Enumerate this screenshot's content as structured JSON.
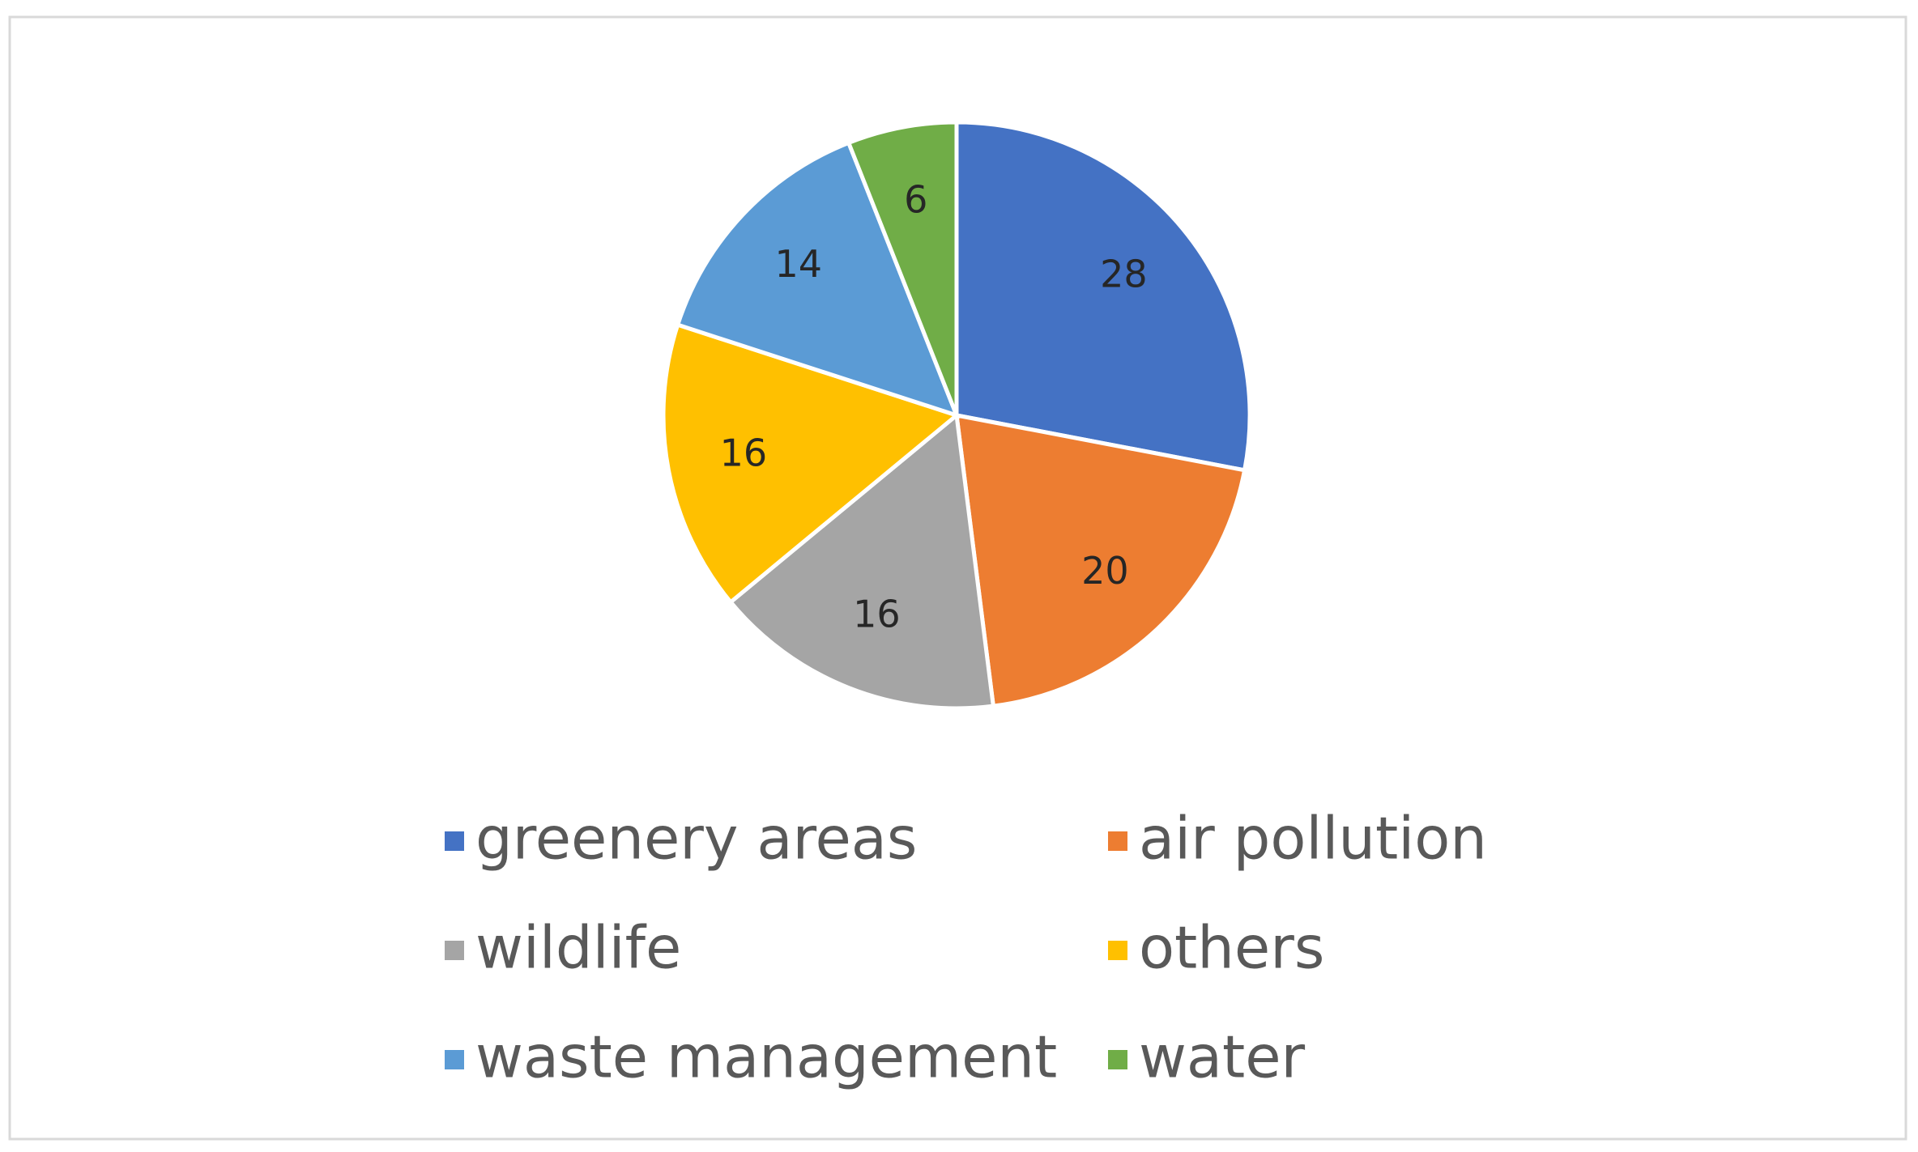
{
  "chart_data": {
    "type": "pie",
    "categories": [
      "greenery areas",
      "air pollution",
      "wildlife",
      "others",
      "waste management",
      "water"
    ],
    "values": [
      28,
      20,
      16,
      16,
      14,
      6
    ],
    "colors": [
      "#4472c4",
      "#ed7d31",
      "#a5a5a5",
      "#ffc000",
      "#5b9bd5",
      "#70ad47"
    ],
    "legend": "bottom"
  }
}
